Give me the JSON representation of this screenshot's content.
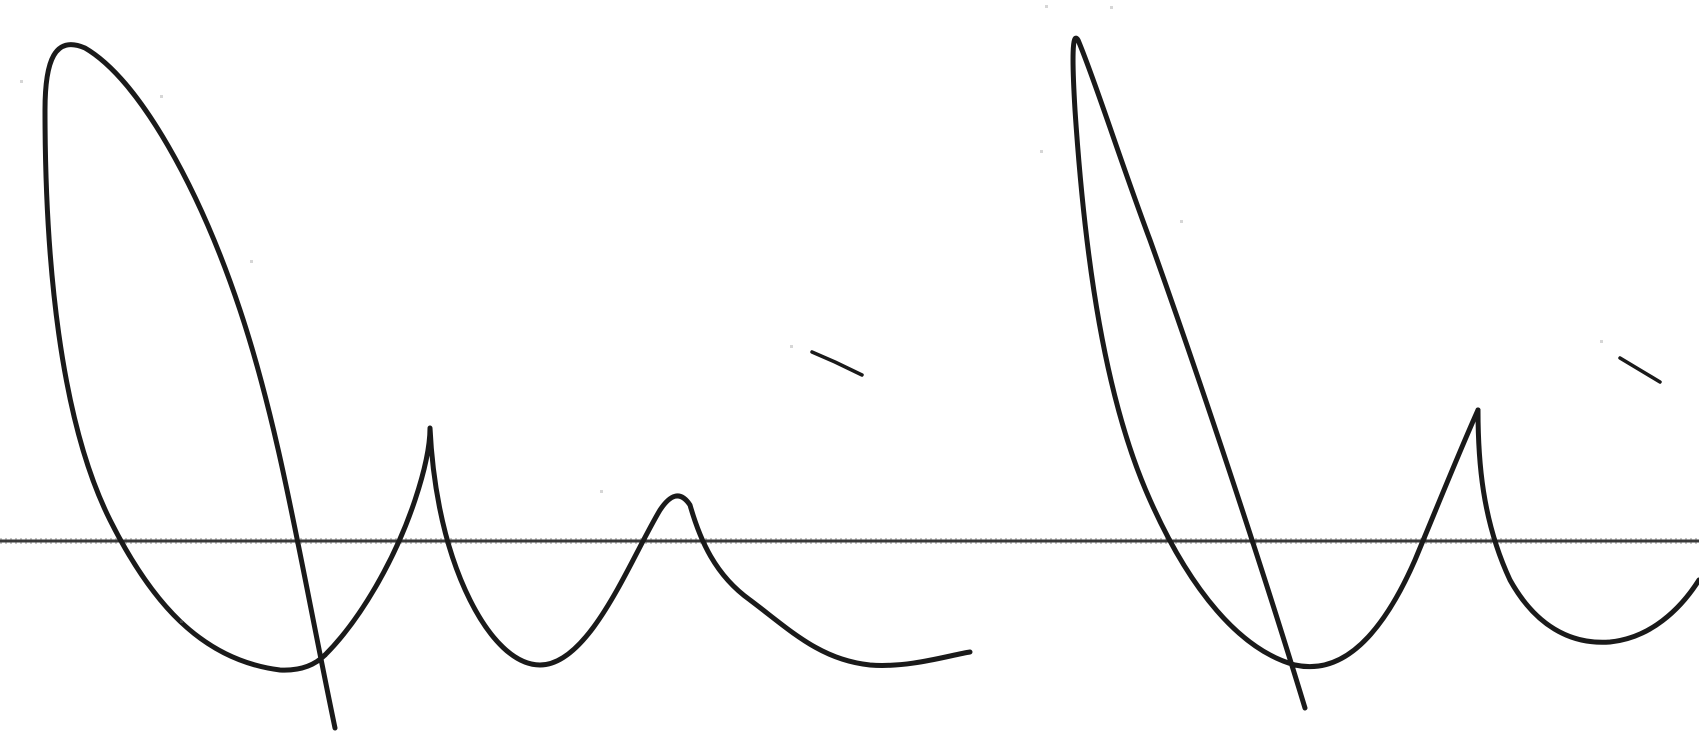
{
  "image": {
    "kind": "handwritten-signature",
    "ink_color": "#1a1a1a",
    "background_color": "#ffffff",
    "baseline_color": "#3a3a3a"
  }
}
